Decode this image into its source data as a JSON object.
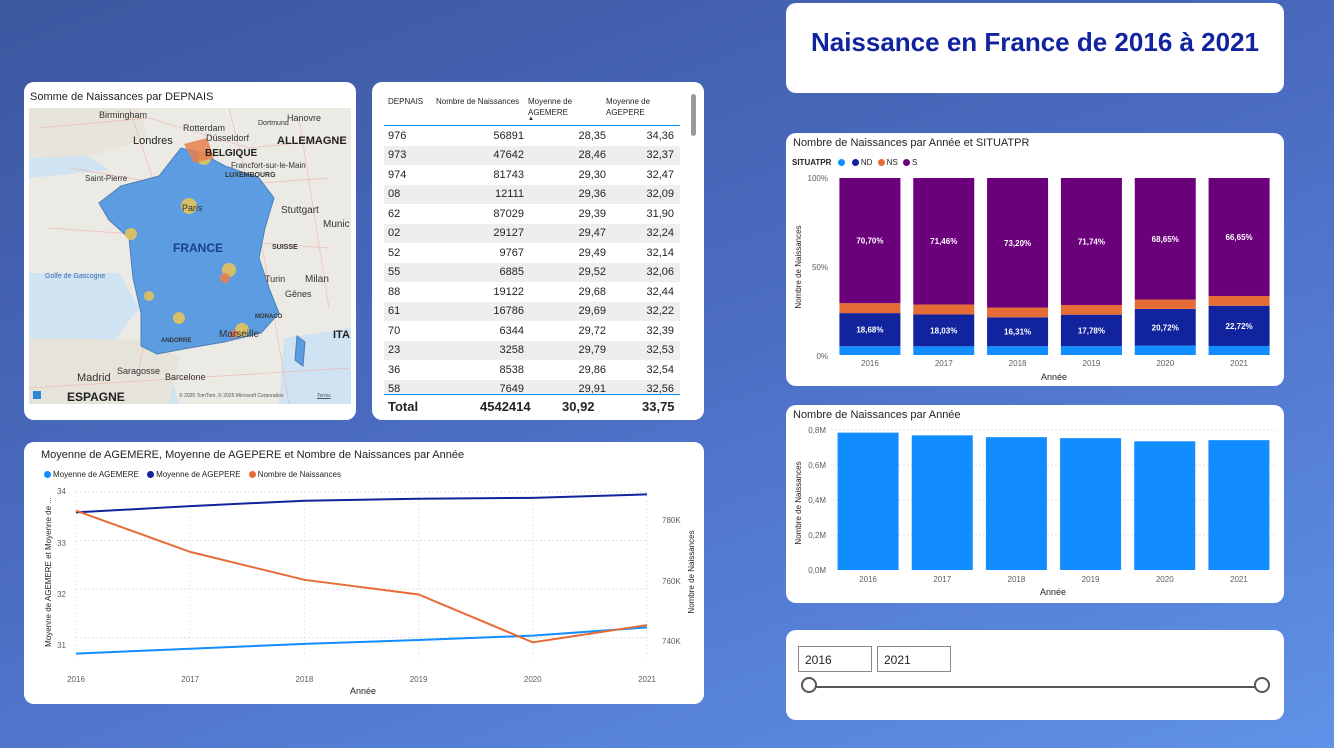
{
  "title": "Naissance en France de 2016 à 2021",
  "colors": {
    "light_blue": "#118dff",
    "dark_blue": "#12239e",
    "orange": "#e66c37",
    "purple": "#6b007b",
    "title": "#12239e"
  },
  "map": {
    "title": "Somme de Naissances par DEPNAIS",
    "labels": {
      "birmingham": "Birmingham",
      "hanovre": "Hanovre",
      "rotterdam": "Rotterdam",
      "dusseldorf": "Düsseldorf",
      "dortmund": "Dortmund",
      "londres": "Londres",
      "belgique": "BELGIQUE",
      "allemagne": "ALLEMAGNE",
      "francfort": "Francfort-sur-le-Main",
      "luxembourg": "LUXEMBOURG",
      "saint_pierre": "Saint-Pierre",
      "paris": "Paris",
      "stuttgart": "Stuttgart",
      "munich": "Munic",
      "france": "FRANCE",
      "suisse": "SUISSE",
      "golfe": "Golfe de Gascogne",
      "turin": "Turin",
      "milan": "Milan",
      "genes": "Gênes",
      "monaco": "MONACO",
      "marseille": "Marseille",
      "andorre": "ANDORRE",
      "ita": "ITA",
      "saragosse": "Saragosse",
      "madrid": "Madrid",
      "barcelone": "Barcelone",
      "espagne": "ESPAGNE",
      "copyright": "© 2025 TomTom, © 2025 Microsoft Corporation",
      "terms": "Terms"
    }
  },
  "table": {
    "headers": [
      "DEPNAIS",
      "Nombre de Naissances",
      "Moyenne de AGEMERE",
      "Moyenne de AGEPERE"
    ],
    "rows": [
      [
        "976",
        "56891",
        "28,35",
        "34,36"
      ],
      [
        "973",
        "47642",
        "28,46",
        "32,37"
      ],
      [
        "974",
        "81743",
        "29,30",
        "32,47"
      ],
      [
        "08",
        "12111",
        "29,36",
        "32,09"
      ],
      [
        "62",
        "87029",
        "29,39",
        "31,90"
      ],
      [
        "02",
        "29127",
        "29,47",
        "32,24"
      ],
      [
        "52",
        "9767",
        "29,49",
        "32,14"
      ],
      [
        "55",
        "6885",
        "29,52",
        "32,06"
      ],
      [
        "88",
        "19122",
        "29,68",
        "32,44"
      ],
      [
        "61",
        "16786",
        "29,69",
        "32,22"
      ],
      [
        "70",
        "6344",
        "29,72",
        "32,39"
      ],
      [
        "23",
        "3258",
        "29,79",
        "32,53"
      ],
      [
        "36",
        "8538",
        "29,86",
        "32,54"
      ],
      [
        "58",
        "7649",
        "29,91",
        "32,56"
      ]
    ],
    "total": {
      "label": "Total",
      "naissances": "4542414",
      "agemere": "30,92",
      "agepere": "33,75"
    }
  },
  "line_chart": {
    "title": "Moyenne de AGEMERE, Moyenne de AGEPERE et Nombre de Naissances par Année",
    "legend": [
      "Moyenne de AGEMERE",
      "Moyenne de AGEPERE",
      "Nombre de Naissances"
    ],
    "xlabel": "Année",
    "ylabel_left": "Moyenne de AGEMERE et Moyenne de ...",
    "ylabel_right": "Nombre de Naissances",
    "left_ticks": [
      "34",
      "33",
      "32",
      "31"
    ],
    "right_ticks": [
      "780K",
      "760K",
      "740K"
    ]
  },
  "stacked_chart": {
    "title": "Nombre de Naissances par Année et SITUATPR",
    "legend_title": "SITUATPR",
    "legend": [
      "",
      "ND",
      "NS",
      "S"
    ],
    "xlabel": "Année",
    "ylabel": "Nombre de Naissances",
    "y_ticks": [
      "100%",
      "50%",
      "0%"
    ]
  },
  "bar_chart": {
    "title": "Nombre de Naissances par Année",
    "xlabel": "Année",
    "ylabel": "Nombre de Naissances",
    "y_ticks": [
      "0,8M",
      "0,6M",
      "0,4M",
      "0,2M",
      "0,0M"
    ]
  },
  "slicer": {
    "start": "2016",
    "end": "2021"
  },
  "chart_data": [
    {
      "type": "line",
      "title": "Moyenne de AGEMERE, Moyenne de AGEPERE et Nombre de Naissances par Année",
      "x": [
        "2016",
        "2017",
        "2018",
        "2019",
        "2020",
        "2021"
      ],
      "series": [
        {
          "name": "Moyenne de AGEMERE",
          "axis": "left",
          "values": [
            30.67,
            30.77,
            30.87,
            30.95,
            31.04,
            31.21
          ]
        },
        {
          "name": "Moyenne de AGEPERE",
          "axis": "left",
          "values": [
            33.58,
            33.71,
            33.82,
            33.86,
            33.88,
            33.95
          ]
        },
        {
          "name": "Nombre de Naissances",
          "axis": "right",
          "values": [
            785000,
            769500,
            759000,
            753500,
            735500,
            742000
          ]
        }
      ],
      "ylim_left": [
        30.6,
        34
      ],
      "ylim_right": [
        730000,
        792000
      ],
      "xlabel": "Année",
      "ylabel": "Moyenne de AGEMERE et Moyenne de ...",
      "ylabel_right": "Nombre de Naissances"
    },
    {
      "type": "bar",
      "stacked": "percent",
      "title": "Nombre de Naissances par Année et SITUATPR",
      "categories": [
        "2016",
        "2017",
        "2018",
        "2019",
        "2020",
        "2021"
      ],
      "series": [
        {
          "name": "",
          "values": [
            5.0,
            4.9,
            5.0,
            5.0,
            5.3,
            5.1
          ]
        },
        {
          "name": "ND",
          "values": [
            18.68,
            18.03,
            16.31,
            17.78,
            20.72,
            22.72
          ]
        },
        {
          "name": "NS",
          "values": [
            5.62,
            5.61,
            5.49,
            5.48,
            5.33,
            5.52
          ]
        },
        {
          "name": "S",
          "values": [
            70.7,
            71.46,
            73.2,
            71.74,
            68.65,
            66.65
          ]
        }
      ],
      "data_labels": {
        "ND": [
          "18,68%",
          "18,03%",
          "16,31%",
          "17,78%",
          "20,72%",
          "22,72%"
        ],
        "S": [
          "70,70%",
          "71,46%",
          "73,20%",
          "71,74%",
          "68,65%",
          "66,65%"
        ]
      },
      "ylim": [
        0,
        100
      ],
      "xlabel": "Année",
      "ylabel": "Nombre de Naissances"
    },
    {
      "type": "bar",
      "title": "Nombre de Naissances par Année",
      "categories": [
        "2016",
        "2017",
        "2018",
        "2019",
        "2020",
        "2021"
      ],
      "values": [
        785000,
        769500,
        759000,
        753500,
        735500,
        742000
      ],
      "ylim": [
        0,
        800000
      ],
      "xlabel": "Année",
      "ylabel": "Nombre de Naissances"
    }
  ]
}
